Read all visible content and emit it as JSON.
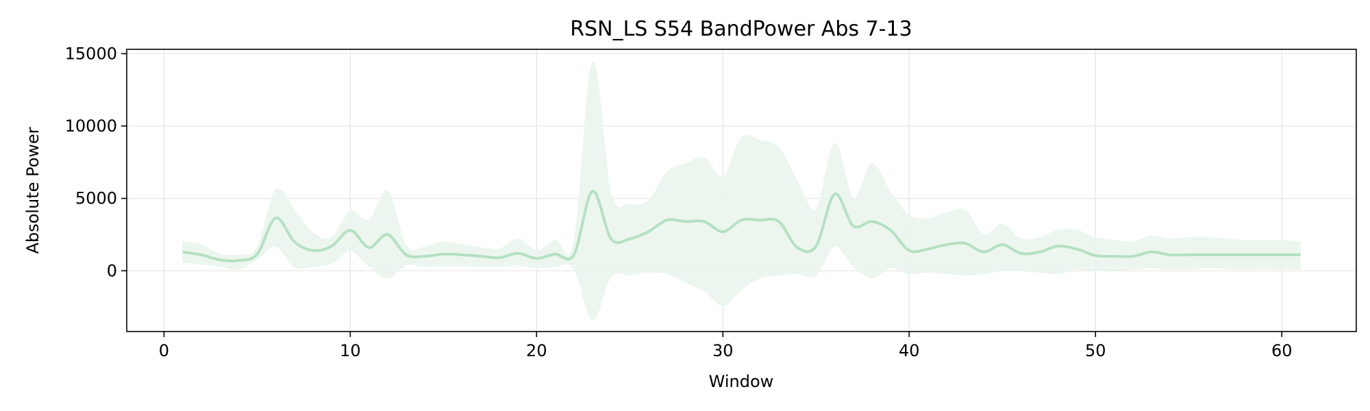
{
  "chart_data": {
    "type": "line",
    "title": "RSN_LS S54 BandPower Abs 7-13",
    "xlabel": "Window",
    "ylabel": "Absolute Power",
    "xlim": [
      -2,
      64
    ],
    "ylim": [
      -4200,
      15300
    ],
    "xticks": [
      0,
      10,
      20,
      30,
      40,
      50,
      60
    ],
    "yticks": [
      0,
      5000,
      10000,
      15000
    ],
    "grid": true,
    "colors": {
      "line": "#b5e0c3",
      "band": "#e9f5ec"
    },
    "series": [
      {
        "x": [
          1,
          2,
          3,
          4,
          5,
          6,
          7,
          8,
          9,
          10,
          11,
          12,
          13,
          14,
          15,
          16,
          17,
          18,
          19,
          20,
          21,
          22,
          23,
          24,
          25,
          26,
          27,
          28,
          29,
          30,
          31,
          32,
          33,
          34,
          35,
          36,
          37,
          38,
          39,
          40,
          41,
          42,
          43,
          44,
          45,
          46,
          47,
          48,
          49,
          50,
          51,
          52,
          53,
          54,
          55,
          56,
          57,
          58,
          59,
          60,
          61
        ],
        "values": [
          1300,
          1100,
          750,
          700,
          1150,
          3650,
          2000,
          1400,
          1700,
          2800,
          1600,
          2500,
          1100,
          1000,
          1150,
          1100,
          1000,
          900,
          1200,
          850,
          1150,
          1100,
          5500,
          2200,
          2200,
          2700,
          3500,
          3400,
          3400,
          2700,
          3500,
          3500,
          3400,
          1600,
          1700,
          5300,
          3100,
          3400,
          2800,
          1400,
          1500,
          1800,
          1900,
          1300,
          1800,
          1200,
          1300,
          1700,
          1500,
          1050,
          1000,
          1000,
          1300,
          1100,
          1100,
          1100,
          1100,
          1100,
          1100,
          1100,
          1100
        ],
        "upper": [
          2000,
          1800,
          1150,
          1100,
          1600,
          5600,
          4200,
          2600,
          2300,
          4100,
          3500,
          5500,
          1700,
          1650,
          2000,
          1800,
          1600,
          1500,
          2200,
          1400,
          2100,
          1950,
          14400,
          5300,
          4600,
          4800,
          6800,
          7400,
          7800,
          6500,
          9200,
          9000,
          8500,
          6200,
          4200,
          8800,
          5000,
          7400,
          5400,
          3800,
          3600,
          4000,
          4200,
          2500,
          3200,
          2200,
          2300,
          2800,
          2800,
          2300,
          2100,
          2000,
          2400,
          2200,
          2300,
          2300,
          2200,
          2100,
          2100,
          2100,
          2000
        ],
        "lower": [
          600,
          450,
          300,
          100,
          800,
          1700,
          250,
          300,
          500,
          1400,
          300,
          -500,
          400,
          300,
          350,
          350,
          300,
          300,
          400,
          200,
          300,
          150,
          -3400,
          -400,
          -300,
          -100,
          -200,
          -800,
          -1400,
          -2400,
          -1300,
          -500,
          -300,
          -200,
          -300,
          1700,
          300,
          -500,
          200,
          -200,
          -100,
          -200,
          -300,
          -200,
          0,
          0,
          -100,
          -200,
          100,
          0,
          50,
          100,
          200,
          100,
          100,
          200,
          150,
          100,
          150,
          100,
          100
        ]
      }
    ]
  }
}
